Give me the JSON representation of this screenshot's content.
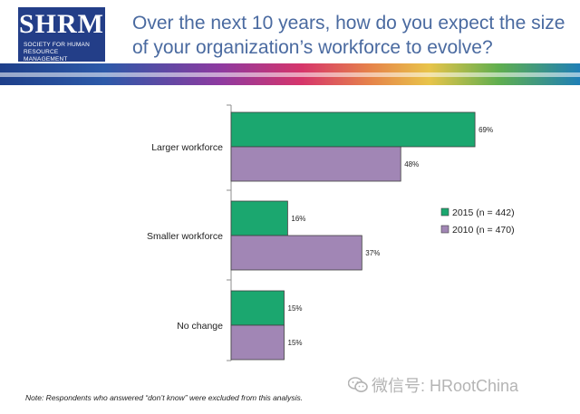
{
  "header": {
    "logo_text": "SHRM",
    "logo_subtitle": "SOCIETY FOR HUMAN RESOURCE MANAGEMENT",
    "title_line1": "Over the next 10 years, how do you expect the size",
    "title_line2": "of your organization’s workforce to evolve?"
  },
  "footer": {
    "note": "Note: Respondents who answered “don’t know” were excluded from this analysis.",
    "watermark": "微信号: HRootChina"
  },
  "colors": {
    "series_2015": "#1ba76f",
    "series_2010": "#a186b5",
    "title": "#4a6aa0"
  },
  "chart_data": {
    "type": "bar",
    "orientation": "horizontal",
    "categories": [
      "Larger workforce",
      "Smaller workforce",
      "No change"
    ],
    "series": [
      {
        "name": "2015 (n = 442)",
        "values": [
          69,
          16,
          15
        ],
        "labels": [
          "69%",
          "16%",
          "15%"
        ],
        "color": "#1ba76f"
      },
      {
        "name": "2010 (n = 470)",
        "values": [
          48,
          37,
          15
        ],
        "labels": [
          "48%",
          "37%",
          "15%"
        ],
        "color": "#a186b5"
      }
    ],
    "xlim": [
      0,
      70
    ],
    "legend_position": "right",
    "grid": false
  }
}
